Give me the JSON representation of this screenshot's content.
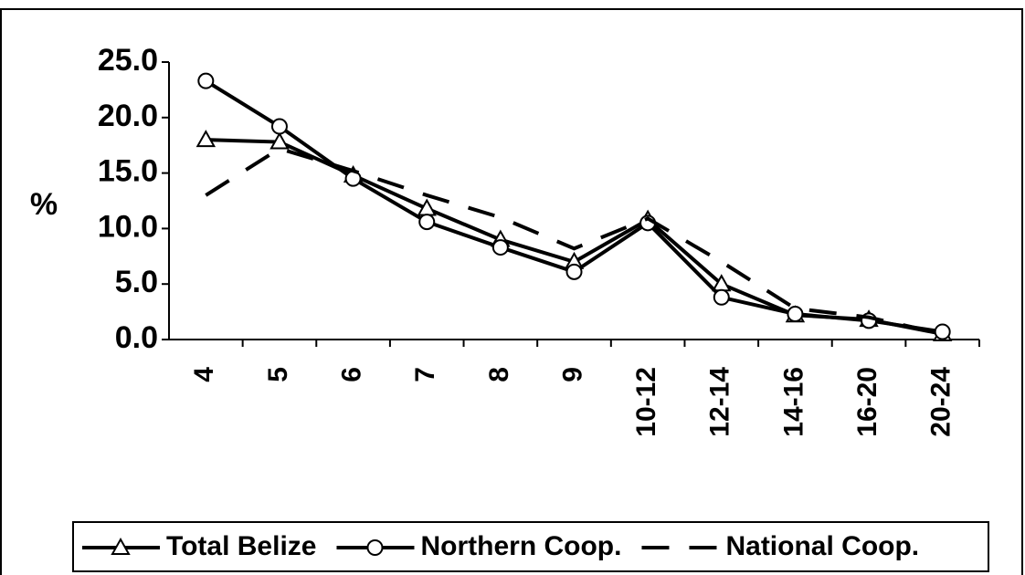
{
  "chart_data": {
    "type": "line",
    "y_label": "%",
    "categories": [
      "4",
      "5",
      "6",
      "7",
      "8",
      "9",
      "10-12",
      "12-14",
      "14-16",
      "16-20",
      "20-24"
    ],
    "series": [
      {
        "name": "Total Belize",
        "color": "#000000",
        "marker": "triangle",
        "dash": false,
        "values": [
          18.0,
          17.8,
          14.8,
          11.8,
          9.0,
          7.0,
          10.8,
          5.0,
          2.2,
          1.8,
          0.5
        ]
      },
      {
        "name": "Northern Coop.",
        "color": "#000000",
        "marker": "circle",
        "dash": false,
        "values": [
          23.3,
          19.2,
          14.5,
          10.6,
          8.3,
          6.1,
          10.5,
          3.8,
          2.3,
          1.7,
          0.7
        ]
      },
      {
        "name": "National Coop.",
        "color": "#000000",
        "marker": "none",
        "dash": true,
        "values": [
          13.0,
          17.2,
          15.2,
          13.0,
          11.0,
          8.2,
          10.9,
          7.0,
          2.8,
          2.0,
          0.5
        ]
      }
    ],
    "ylim": [
      0,
      25
    ],
    "yticks": [
      {
        "value": 0,
        "label": "0.0"
      },
      {
        "value": 5,
        "label": "5.0"
      },
      {
        "value": 10,
        "label": "10.0"
      },
      {
        "value": 15,
        "label": "15.0"
      },
      {
        "value": 20,
        "label": "20.0"
      },
      {
        "value": 25,
        "label": "25.0"
      }
    ],
    "grid": false,
    "legend": "bottom"
  }
}
